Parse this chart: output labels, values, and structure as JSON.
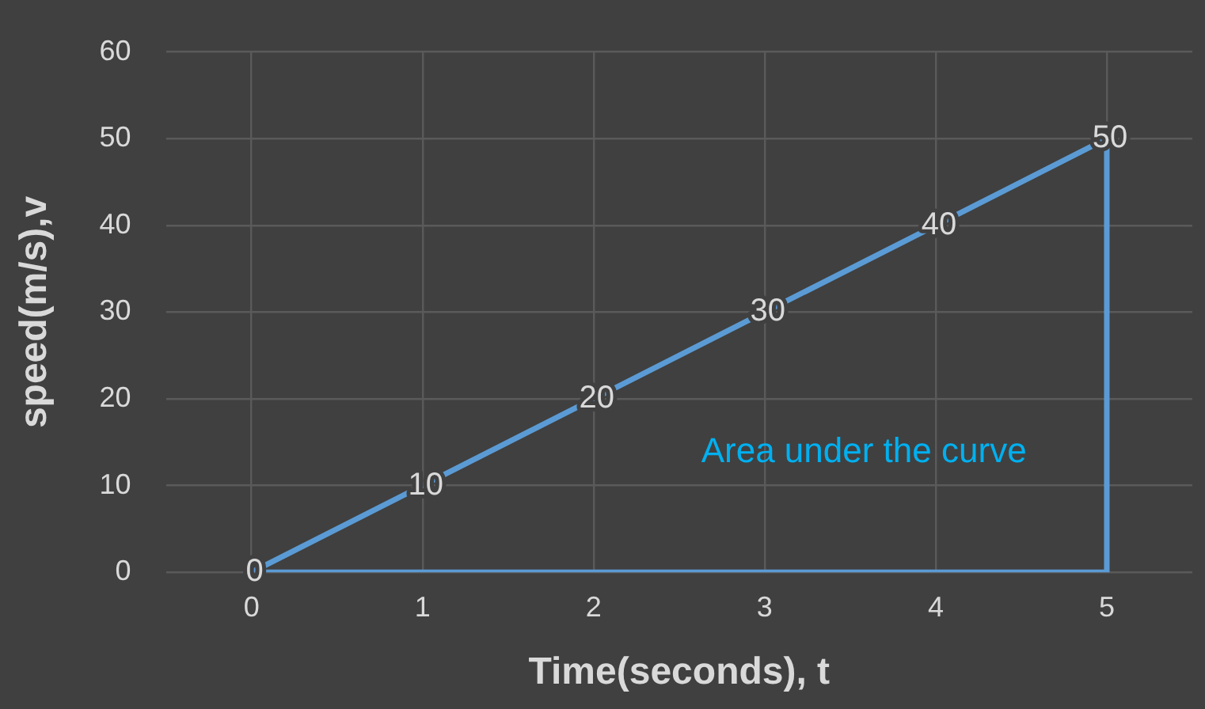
{
  "chart_data": {
    "type": "line",
    "xlabel": "Time(seconds), t",
    "ylabel": "speed(m/s),v",
    "xlim": [
      -0.5,
      5.5
    ],
    "xticks": [
      0,
      1,
      2,
      3,
      4,
      5
    ],
    "ylim": [
      0,
      60
    ],
    "yticks": [
      0,
      10,
      20,
      30,
      40,
      50,
      60
    ],
    "grid": true,
    "marker": "none",
    "series": [
      {
        "color": "#5b9bd5",
        "x": [
          0,
          1,
          2,
          3,
          4,
          5
        ],
        "values": [
          0,
          10,
          20,
          30,
          40,
          50
        ],
        "value_labels": [
          "0",
          "10",
          "20",
          "30",
          "40",
          "50"
        ]
      },
      {
        "color": "#5b9bd5",
        "x": [
          5,
          5,
          0
        ],
        "values": [
          50,
          0,
          0
        ]
      }
    ],
    "annotations": [
      "Area under the curve"
    ]
  }
}
